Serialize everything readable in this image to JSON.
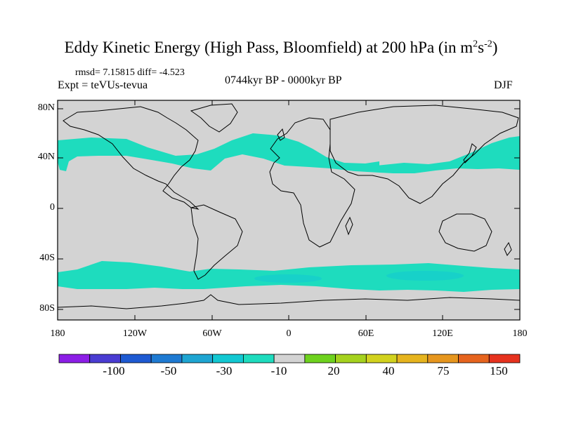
{
  "title": "Eddy Kinetic Energy (High Pass, Bloomfield) at 200 hPa (in m",
  "title_units": {
    "sup1": "2",
    "mid": "s",
    "sup2": "-2",
    "close": ")"
  },
  "stats": "rmsd= 7.15815 diff= -4.523",
  "experiment": "Expt = teVUs-tevua",
  "period": "0744kyr BP - 0000kyr BP",
  "season": "DJF",
  "lat_labels": [
    "80N",
    "40N",
    "0",
    "40S",
    "80S"
  ],
  "lon_labels": [
    "180",
    "120W",
    "60W",
    "0",
    "60E",
    "120E",
    "180"
  ],
  "colorbar": {
    "colors": [
      "#8c1ee6",
      "#4a3cd2",
      "#1e5ad2",
      "#1e7ad2",
      "#1ea5d2",
      "#12c8d2",
      "#1edcbe",
      "#d3d3d3",
      "#6ed21e",
      "#a5d21e",
      "#d2d21e",
      "#e6b41e",
      "#e6961e",
      "#e6641e",
      "#e6321e"
    ],
    "labels": [
      "-100",
      "-50",
      "-30",
      "-10",
      "20",
      "40",
      "75",
      "150"
    ]
  },
  "chart_data": {
    "type": "map",
    "variable": "Eddy Kinetic Energy difference",
    "units": "m2 s-2",
    "level": "200 hPa",
    "lon_range": [
      -180,
      180
    ],
    "lat_range": [
      -90,
      90
    ],
    "background_value_class": "-10 to 20",
    "anomaly_class": "-20 to -10",
    "features": [
      {
        "name": "north-atlantic-pacific-band",
        "class": "-20 to -10"
      },
      {
        "name": "eurasian-band",
        "class": "-20 to -10"
      },
      {
        "name": "north-pacific-band",
        "class": "-20 to -10"
      },
      {
        "name": "southern-ocean-band",
        "class": "-20 to -10"
      }
    ]
  }
}
